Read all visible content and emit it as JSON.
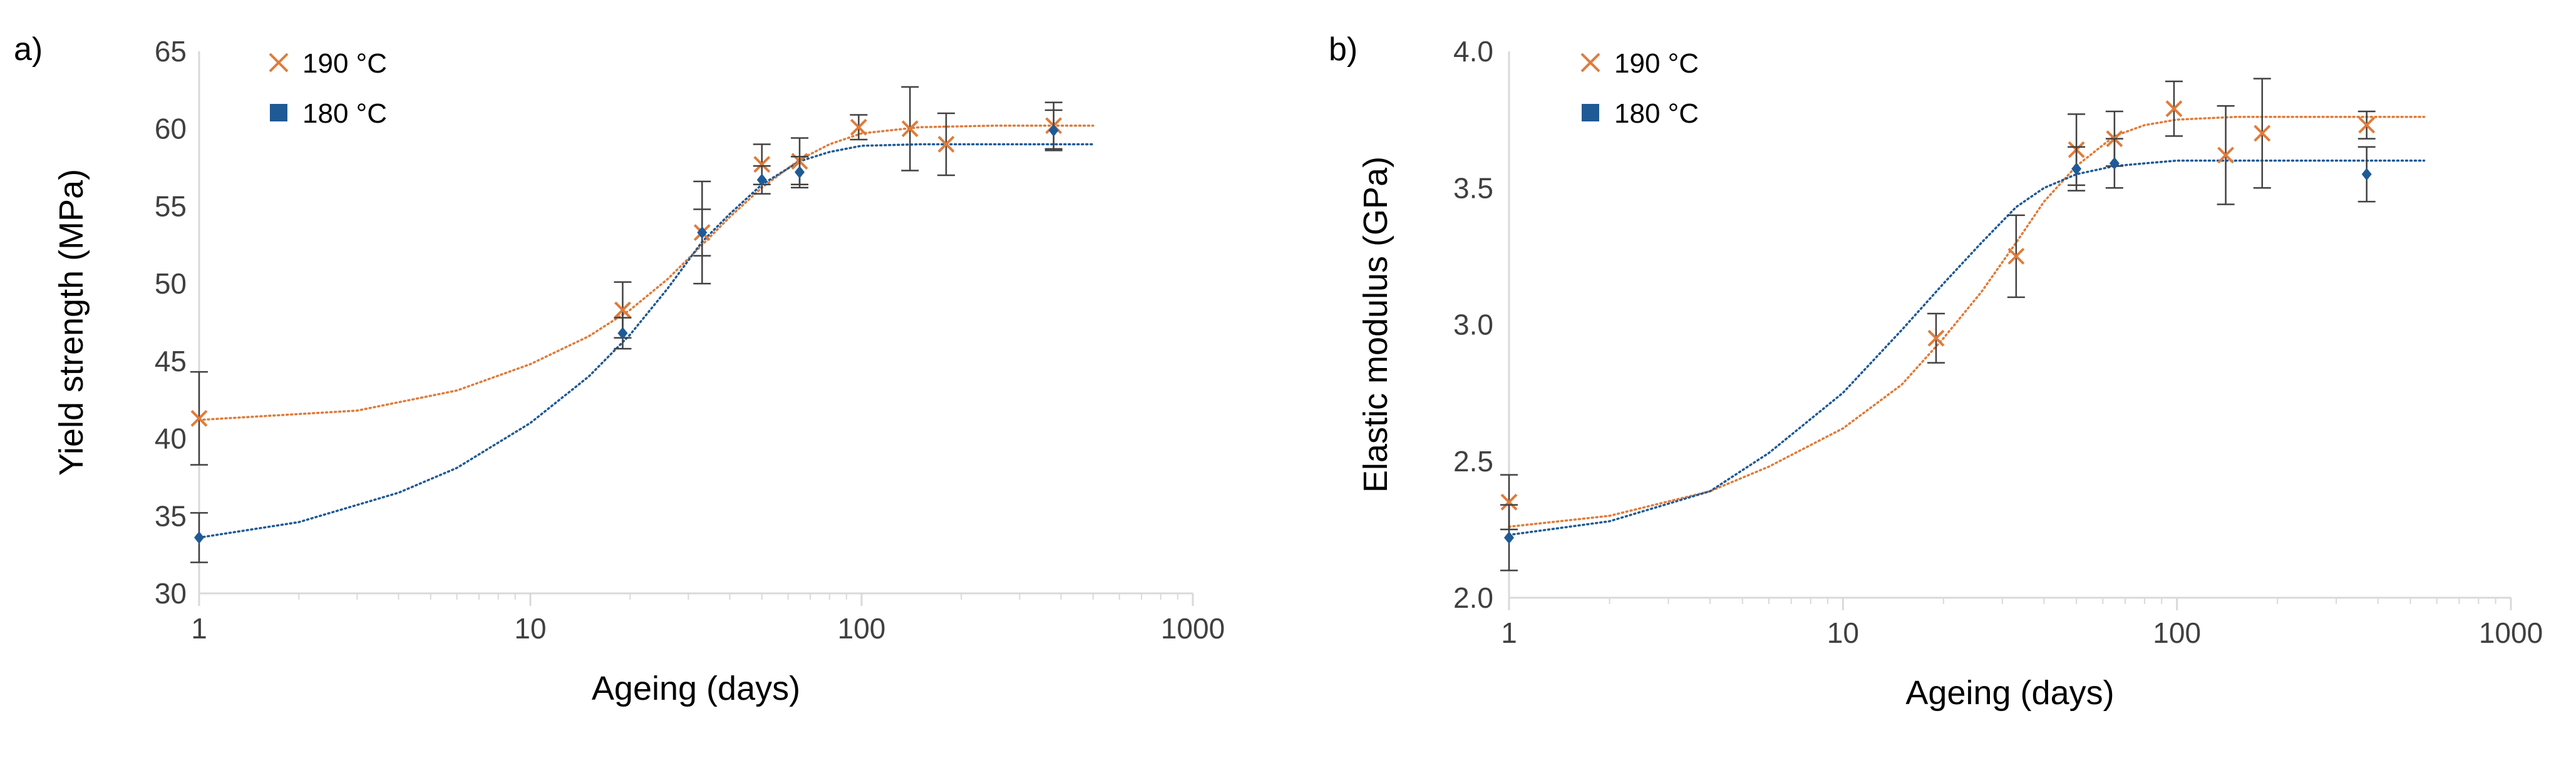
{
  "chart_data": [
    {
      "type": "scatter",
      "panel_label": "a)",
      "title": "",
      "xlabel": "Ageing (days)",
      "ylabel": "Yield strength (MPa)",
      "xscale": "log",
      "xlim": [
        1,
        1000
      ],
      "ylim": [
        30,
        65
      ],
      "xticks": [
        1,
        10,
        100,
        1000
      ],
      "xtick_labels": [
        "1",
        "10",
        "100",
        "1000"
      ],
      "yticks": [
        30,
        35,
        40,
        45,
        50,
        55,
        60,
        65
      ],
      "ytick_labels": [
        "30",
        "35",
        "40",
        "45",
        "50",
        "55",
        "60",
        "65"
      ],
      "grid": false,
      "legend_position": "top-left",
      "series": [
        {
          "name": "190 °C",
          "marker": "x",
          "color": "#E07B39",
          "x": [
            1,
            19,
            33,
            50,
            65,
            98,
            140,
            180,
            380
          ],
          "y": [
            41.3,
            48.3,
            53.3,
            57.7,
            57.9,
            60.1,
            60.0,
            59.0,
            60.2
          ],
          "err": [
            3.0,
            1.8,
            3.3,
            1.3,
            1.5,
            0.8,
            2.7,
            2.0,
            1.5
          ],
          "fit": {
            "label": "",
            "x": [
              1,
              3,
              6,
              10,
              15,
              20,
              26,
              33,
              40,
              50,
              65,
              80,
              100,
              150,
              250,
              400,
              500
            ],
            "y": [
              41.2,
              41.8,
              43.1,
              44.8,
              46.6,
              48.3,
              50.3,
              52.5,
              54.3,
              56.2,
              58.0,
              59.0,
              59.7,
              60.1,
              60.2,
              60.2,
              60.2
            ]
          }
        },
        {
          "name": "180 °C",
          "marker": "diamond",
          "color": "#1F5A96",
          "x": [
            1,
            19,
            33,
            50,
            65,
            380
          ],
          "y": [
            33.6,
            46.8,
            53.3,
            56.7,
            57.2,
            59.9
          ],
          "err": [
            1.6,
            1.0,
            1.5,
            0.9,
            1.0,
            1.3
          ],
          "fit": {
            "label": "",
            "x": [
              1,
              2,
              4,
              6,
              10,
              15,
              20,
              26,
              33,
              40,
              50,
              65,
              80,
              100,
              150,
              250,
              400,
              500
            ],
            "y": [
              33.6,
              34.6,
              36.5,
              38.1,
              41.0,
              44.0,
              46.7,
              49.7,
              52.7,
              54.5,
              56.4,
              57.9,
              58.5,
              58.9,
              59.0,
              59.0,
              59.0,
              59.0
            ]
          }
        }
      ]
    },
    {
      "type": "scatter",
      "panel_label": "b)",
      "title": "",
      "xlabel": "Ageing (days)",
      "ylabel": "Elastic modulus (GPa)",
      "xscale": "log",
      "xlim": [
        1,
        1000
      ],
      "ylim": [
        2.0,
        4.0
      ],
      "xticks": [
        1,
        10,
        100,
        1000
      ],
      "xtick_labels": [
        "1",
        "10",
        "100",
        "1000"
      ],
      "yticks": [
        2.0,
        2.5,
        3.0,
        3.5,
        4.0
      ],
      "ytick_labels": [
        "2.0",
        "2.5",
        "3.0",
        "3.5",
        "4.0"
      ],
      "grid": false,
      "legend_position": "top-left",
      "series": [
        {
          "name": "190 °C",
          "marker": "x",
          "color": "#E07B39",
          "x": [
            1,
            19,
            33,
            50,
            65,
            98,
            140,
            180,
            370
          ],
          "y": [
            2.35,
            2.95,
            3.25,
            3.64,
            3.68,
            3.79,
            3.62,
            3.7,
            3.73
          ],
          "err": [
            0.1,
            0.09,
            0.15,
            0.13,
            0.1,
            0.1,
            0.18,
            0.2,
            0.05
          ],
          "fit": {
            "label": "",
            "x": [
              1,
              2,
              4,
              6,
              10,
              15,
              20,
              26,
              33,
              40,
              50,
              65,
              80,
              100,
              150,
              250,
              400,
              550
            ],
            "y": [
              2.26,
              2.3,
              2.39,
              2.48,
              2.62,
              2.78,
              2.95,
              3.12,
              3.3,
              3.45,
              3.58,
              3.69,
              3.73,
              3.75,
              3.76,
              3.76,
              3.76,
              3.76
            ]
          }
        },
        {
          "name": "180 °C",
          "marker": "diamond",
          "color": "#1F5A96",
          "x": [
            1,
            50,
            65,
            370
          ],
          "y": [
            2.22,
            3.57,
            3.59,
            3.55
          ],
          "err": [
            0.12,
            0.08,
            0.09,
            0.1
          ],
          "fit": {
            "label": "",
            "x": [
              1,
              2,
              4,
              6,
              10,
              15,
              20,
              26,
              33,
              40,
              50,
              65,
              80,
              100,
              150,
              250,
              400,
              550
            ],
            "y": [
              2.23,
              2.28,
              2.39,
              2.53,
              2.75,
              2.98,
              3.15,
              3.3,
              3.43,
              3.5,
              3.55,
              3.58,
              3.59,
              3.6,
              3.6,
              3.6,
              3.6,
              3.6
            ]
          }
        }
      ]
    }
  ]
}
